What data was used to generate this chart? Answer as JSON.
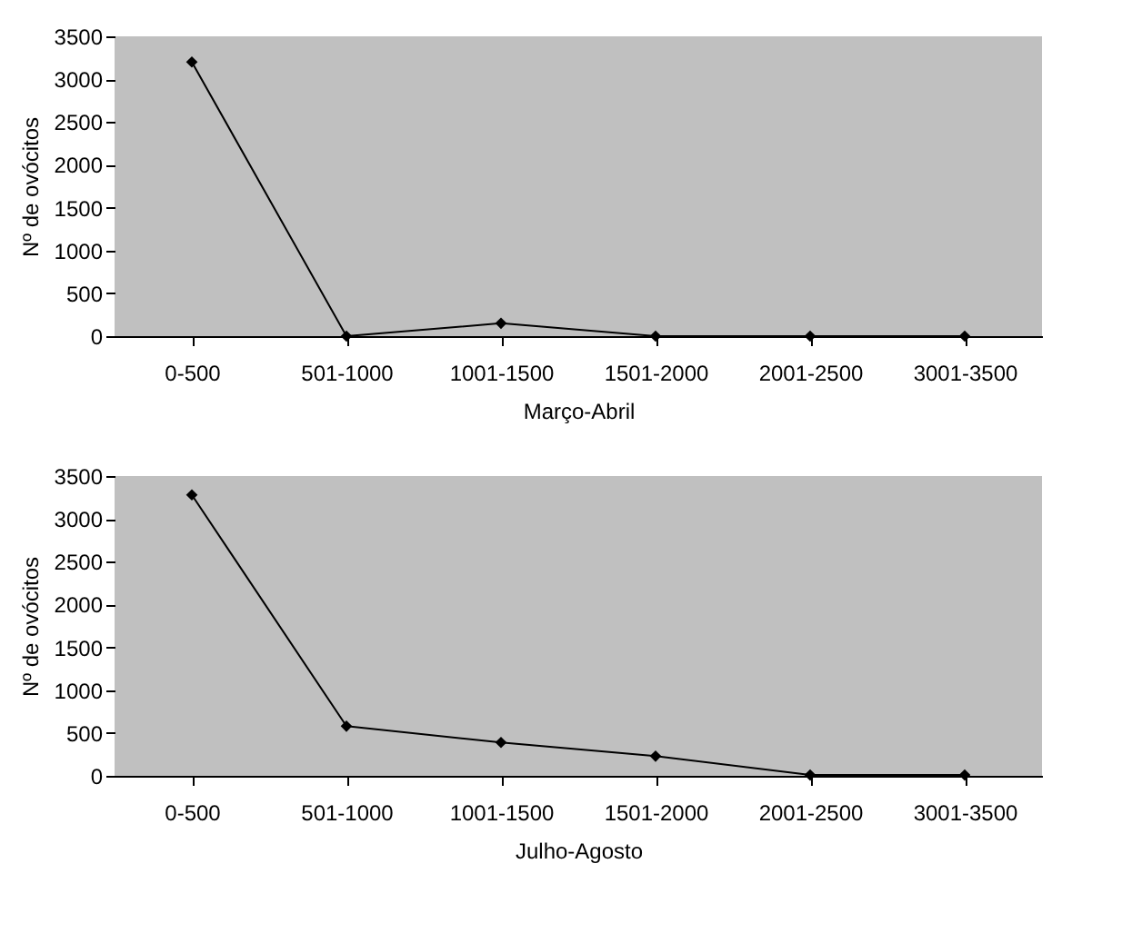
{
  "chart_data": [
    {
      "type": "line",
      "categories": [
        "0-500",
        "501-1000",
        "1001-1500",
        "1501-2000",
        "2001-2500",
        "3001-3500"
      ],
      "xlabel": "Março-Abril",
      "ylabel": "Nº de ovócitos",
      "series": [
        {
          "color": "#000000",
          "values": [
            3200,
            0,
            150,
            0,
            0,
            0
          ]
        }
      ],
      "ylim": [
        0,
        3500
      ],
      "yticks": [
        0,
        500,
        1000,
        1500,
        2000,
        2500,
        3000,
        3500
      ],
      "marker": "diamond",
      "grid": false,
      "legend": false
    },
    {
      "type": "line",
      "categories": [
        "0-500",
        "501-1000",
        "1001-1500",
        "1501-2000",
        "2001-2500",
        "3001-3500"
      ],
      "xlabel": "Julho-Agosto",
      "ylabel": "Nº de ovócitos",
      "series": [
        {
          "color": "#000000",
          "values": [
            3280,
            580,
            390,
            230,
            10,
            10
          ]
        }
      ],
      "ylim": [
        0,
        3500
      ],
      "yticks": [
        0,
        500,
        1000,
        1500,
        2000,
        2500,
        3000,
        3500
      ],
      "marker": "diamond",
      "grid": false,
      "legend": false
    }
  ]
}
